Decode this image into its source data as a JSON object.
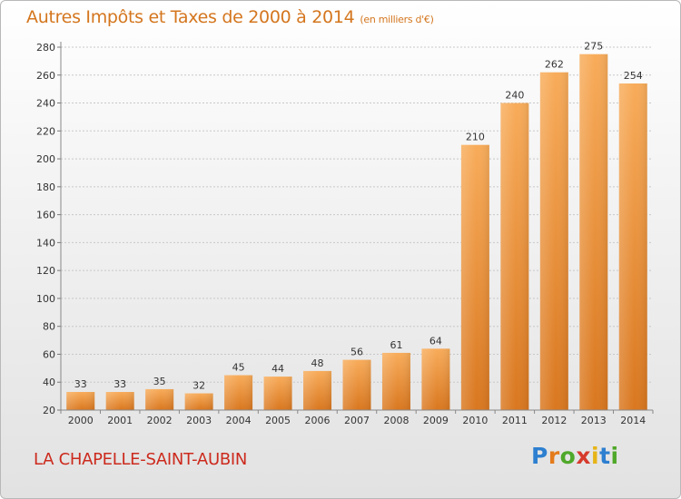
{
  "title": "Autres Impôts et Taxes de 2000 à 2014",
  "unit": "(en milliers d'€)",
  "commune": "LA CHAPELLE-SAINT-AUBIN",
  "logo": {
    "letters": [
      "P",
      "r",
      "o",
      "x",
      "i",
      "t",
      "i"
    ],
    "colors": [
      "#2d7fd0",
      "#e47b1b",
      "#4fa82a",
      "#d63a2c",
      "#e7b417",
      "#2d7fd0",
      "#4fa82a"
    ]
  },
  "colors": {
    "bar_light": "#f8ac5a",
    "bar_dark": "#d9771f",
    "title": "#d4761e",
    "commune": "#cc2a1d"
  },
  "chart_data": {
    "type": "bar",
    "categories": [
      "2000",
      "2001",
      "2002",
      "2003",
      "2004",
      "2005",
      "2006",
      "2007",
      "2008",
      "2009",
      "2010",
      "2011",
      "2012",
      "2013",
      "2014"
    ],
    "values": [
      33,
      33,
      35,
      32,
      45,
      44,
      48,
      56,
      61,
      64,
      210,
      240,
      262,
      275,
      254
    ],
    "title": "Autres Impôts et Taxes de 2000 à 2014",
    "xlabel": "",
    "ylabel": "",
    "ylim": [
      20,
      280
    ],
    "yticks": [
      20,
      40,
      60,
      80,
      100,
      120,
      140,
      160,
      180,
      200,
      220,
      240,
      260,
      280
    ],
    "grid": true
  }
}
